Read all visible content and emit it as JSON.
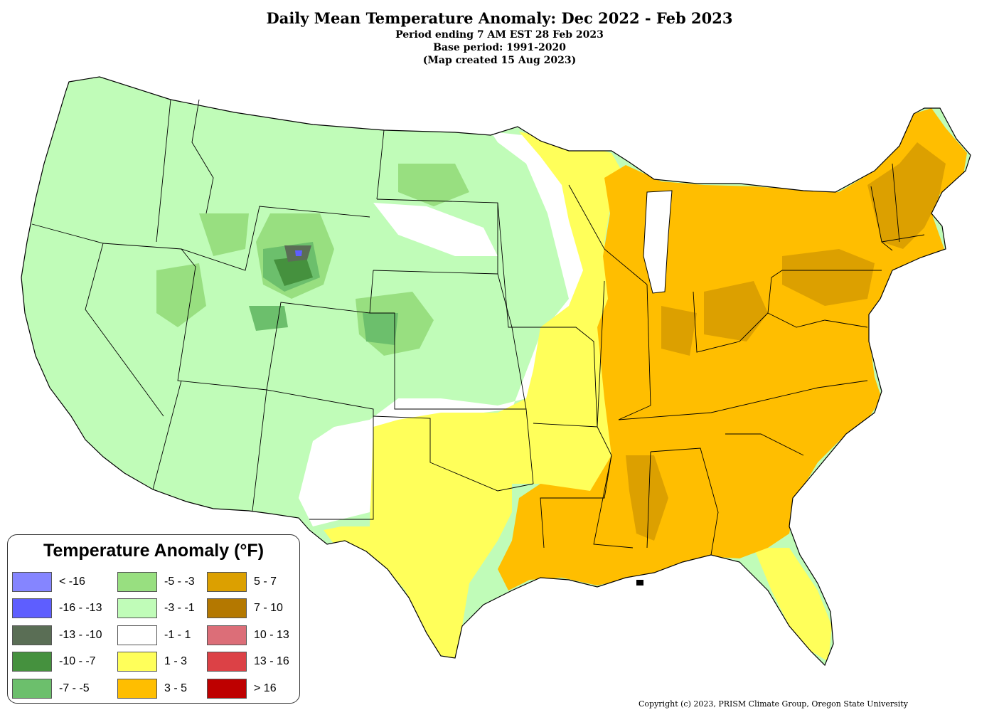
{
  "map": {
    "title": "Daily Mean Temperature Anomaly: Dec 2022 - Feb 2023",
    "period_line": "Period ending 7 AM EST 28 Feb 2023",
    "base_period_line": "Base period: 1991-2020",
    "created_line": "(Map created 15 Aug 2023)",
    "copyright": "Copyright (c) 2023, PRISM Climate Group, Oregon State University"
  },
  "legend": {
    "title": "Temperature Anomaly (°F)",
    "items": [
      {
        "label": "< -16",
        "color": "#8585ff"
      },
      {
        "label": "-16 - -13",
        "color": "#5e5eff"
      },
      {
        "label": "-13 - -10",
        "color": "#5a6e55"
      },
      {
        "label": "-10 - -7",
        "color": "#45913e"
      },
      {
        "label": "-7 - -5",
        "color": "#6cbf6c"
      },
      {
        "label": "-5 - -3",
        "color": "#98df80"
      },
      {
        "label": "-3 - -1",
        "color": "#c0fcb8"
      },
      {
        "label": "-1 - 1",
        "color": "#ffffff"
      },
      {
        "label": "1 - 3",
        "color": "#ffff5a"
      },
      {
        "label": "3 - 5",
        "color": "#ffbe00"
      },
      {
        "label": "5 - 7",
        "color": "#dca000"
      },
      {
        "label": "7 - 10",
        "color": "#b47800"
      },
      {
        "label": "10 - 13",
        "color": "#dc6e78"
      },
      {
        "label": "13 - 16",
        "color": "#dc4146"
      },
      {
        "label": "> 16",
        "color": "#be0000"
      }
    ]
  }
}
